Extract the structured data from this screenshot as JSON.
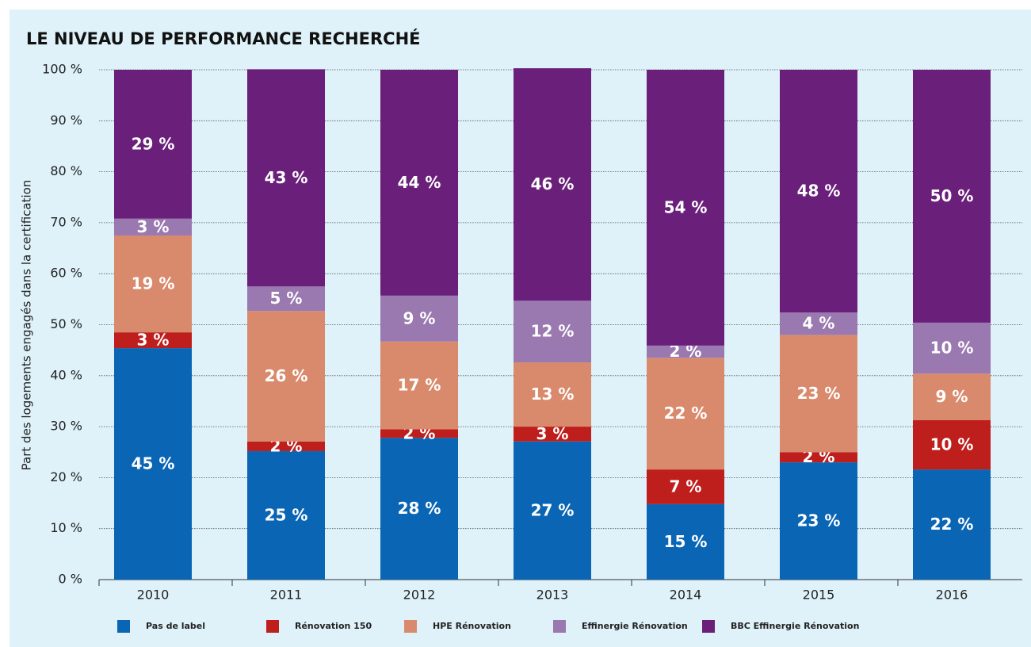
{
  "chart_data": {
    "type": "stacked_bar",
    "title": "LE NIVEAU DE PERFORMANCE RECHERCHÉ",
    "y_label": "Part des logements engagés dans la certification",
    "categories": [
      "2010",
      "2011",
      "2012",
      "2013",
      "2014",
      "2015",
      "2016"
    ],
    "series": [
      {
        "name": "Pas de label",
        "color": "#0a66b4",
        "values": [
          45.4,
          25.2,
          27.8,
          27.1,
          14.8,
          23.0,
          21.6
        ],
        "value_labels": [
          "45 %",
          "25 %",
          "28 %",
          "27 %",
          "15 %",
          "23 %",
          "22 %"
        ]
      },
      {
        "name": "Rénovation 150",
        "color": "#be1e1c",
        "values": [
          3.1,
          1.9,
          1.7,
          2.9,
          6.8,
          2.0,
          9.7
        ],
        "value_labels": [
          "3 %",
          "2 %",
          "2 %",
          "3 %",
          "7 %",
          "2 %",
          "10 %"
        ]
      },
      {
        "name": "HPE Rénovation",
        "color": "#d98a6c",
        "values": [
          19.0,
          25.6,
          17.2,
          12.6,
          21.9,
          23.0,
          9.1
        ],
        "value_labels": [
          "19 %",
          "26 %",
          "17 %",
          "13 %",
          "22 %",
          "23 %",
          "9 %"
        ]
      },
      {
        "name": "Effinergie Rénovation",
        "color": "#9a78b0",
        "values": [
          3.3,
          4.8,
          9.0,
          12.1,
          2.4,
          4.4,
          10.0
        ],
        "value_labels": [
          "3 %",
          "5 %",
          "9 %",
          "12 %",
          "2 %",
          "4 %",
          "10 %"
        ]
      },
      {
        "name": "BBC Effinergie Rénovation",
        "color": "#6a1f7a",
        "values": [
          29.2,
          42.6,
          44.3,
          45.6,
          54.1,
          47.6,
          49.6
        ],
        "value_labels": [
          "29 %",
          "43 %",
          "44 %",
          "46 %",
          "54 %",
          "48 %",
          "50 %"
        ]
      }
    ],
    "ylim": [
      0,
      100
    ],
    "yticks": [
      {
        "value": 0,
        "label": "0 %"
      },
      {
        "value": 10,
        "label": "10 %"
      },
      {
        "value": 20,
        "label": "20 %"
      },
      {
        "value": 30,
        "label": "30 %"
      },
      {
        "value": 40,
        "label": "40 %"
      },
      {
        "value": 50,
        "label": "50 %"
      },
      {
        "value": 60,
        "label": "60 %"
      },
      {
        "value": 70,
        "label": "70 %"
      },
      {
        "value": 80,
        "label": "80 %"
      },
      {
        "value": 90,
        "label": "90 %"
      },
      {
        "value": 100,
        "label": "100 %"
      }
    ],
    "grid": true,
    "legend": "bottom"
  }
}
